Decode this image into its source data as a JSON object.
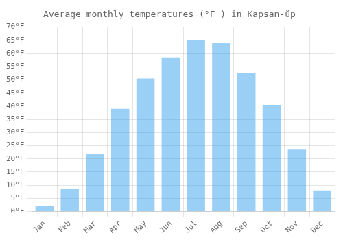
{
  "chart_data": {
    "type": "bar",
    "title": "Average monthly temperatures (°F ) in Kapsan-ŭp",
    "categories": [
      "Jan",
      "Feb",
      "Mar",
      "Apr",
      "May",
      "Jun",
      "Jul",
      "Aug",
      "Sep",
      "Oct",
      "Nov",
      "Dec"
    ],
    "values": [
      2,
      8.5,
      22,
      39,
      50.5,
      58.5,
      65,
      64,
      52.5,
      40.5,
      23.5,
      8
    ],
    "ylim": [
      0,
      70
    ],
    "yticks": [
      {
        "value": 0,
        "label": "0°F"
      },
      {
        "value": 5,
        "label": "5°F"
      },
      {
        "value": 10,
        "label": "10°F"
      },
      {
        "value": 15,
        "label": "15°F"
      },
      {
        "value": 20,
        "label": "20°F"
      },
      {
        "value": 25,
        "label": "25°F"
      },
      {
        "value": 30,
        "label": "30°F"
      },
      {
        "value": 35,
        "label": "35°F"
      },
      {
        "value": 40,
        "label": "40°F"
      },
      {
        "value": 45,
        "label": "45°F"
      },
      {
        "value": 50,
        "label": "50°F"
      },
      {
        "value": 55,
        "label": "55°F"
      },
      {
        "value": 60,
        "label": "60°F"
      },
      {
        "value": 65,
        "label": "65°F"
      },
      {
        "value": 70,
        "label": "70°F"
      }
    ],
    "grid": true
  }
}
